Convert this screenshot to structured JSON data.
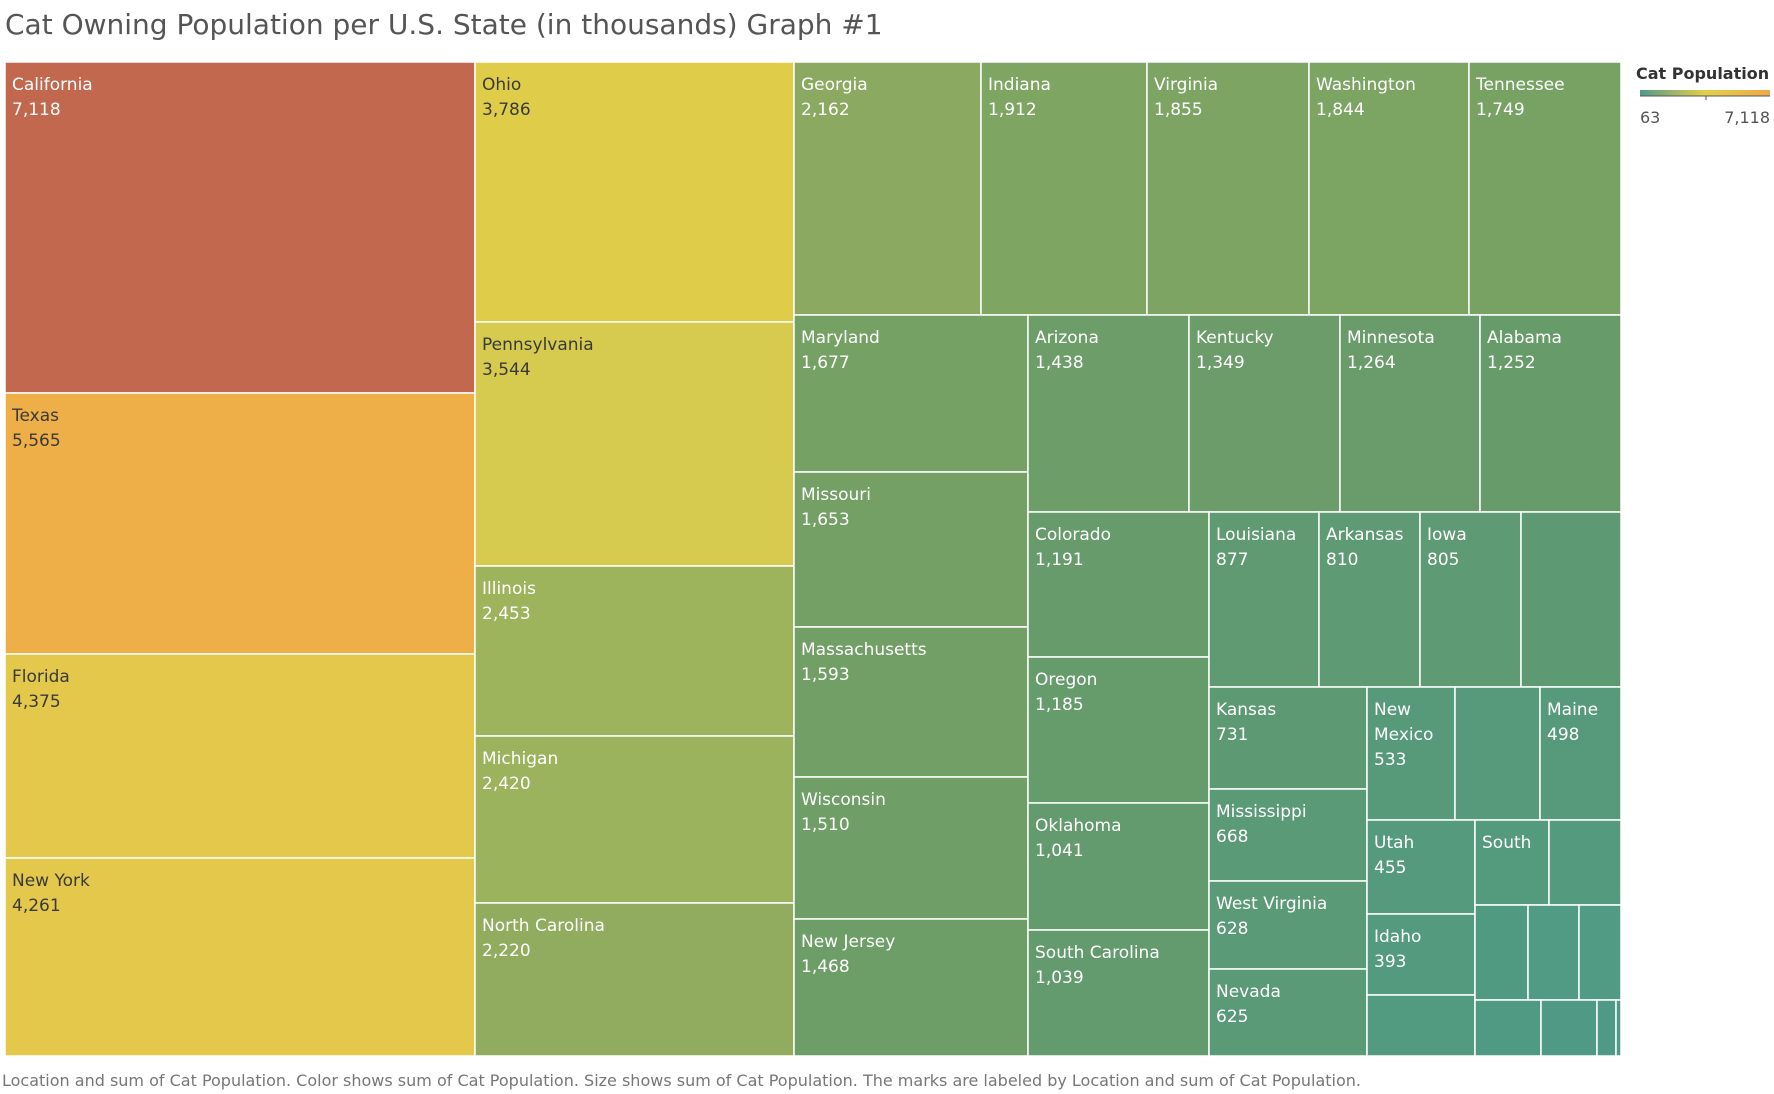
{
  "title": "Cat Owning Population per U.S. State (in thousands) Graph #1",
  "legend": {
    "title": "Cat Population",
    "min_label": "63",
    "max_label": "7,118"
  },
  "caption": "Location and sum of Cat Population.  Color shows sum of Cat Population.  Size shows sum of Cat Population.  The marks are labeled by Location and sum of Cat Population.",
  "chart_data": {
    "type": "treemap",
    "title": "Cat Owning Population per U.S. State (in thousands) Graph #1",
    "color_scale": {
      "min": 63,
      "max": 7118,
      "colors": [
        "#4f9a8a",
        "#e3cf4a",
        "#eeaa48"
      ]
    },
    "items": [
      {
        "label": "California",
        "value": 7118,
        "display": "7,118",
        "color": "#c1684f"
      },
      {
        "label": "Texas",
        "value": 5565,
        "display": "5,565",
        "color": "#eeaf48"
      },
      {
        "label": "Florida",
        "value": 4375,
        "display": "4,375",
        "color": "#e3c84c"
      },
      {
        "label": "New York",
        "value": 4261,
        "display": "4,261",
        "color": "#e3c84c"
      },
      {
        "label": "Ohio",
        "value": 3786,
        "display": "3,786",
        "color": "#dfcd49"
      },
      {
        "label": "Pennsylvania",
        "value": 3544,
        "display": "3,544",
        "color": "#d6cb4f"
      },
      {
        "label": "Illinois",
        "value": 2453,
        "display": "2,453",
        "color": "#9db45c"
      },
      {
        "label": "Michigan",
        "value": 2420,
        "display": "2,420",
        "color": "#9ab35c"
      },
      {
        "label": "North Carolina",
        "value": 2220,
        "display": "2,220",
        "color": "#91ac5e"
      },
      {
        "label": "Georgia",
        "value": 2162,
        "display": "2,162",
        "color": "#8ba960"
      },
      {
        "label": "Indiana",
        "value": 1912,
        "display": "1,912",
        "color": "#7fa563"
      },
      {
        "label": "Virginia",
        "value": 1855,
        "display": "1,855",
        "color": "#7da463"
      },
      {
        "label": "Washington",
        "value": 1844,
        "display": "1,844",
        "color": "#7ca463"
      },
      {
        "label": "Tennessee",
        "value": 1749,
        "display": "1,749",
        "color": "#78a264"
      },
      {
        "label": "Maryland",
        "value": 1677,
        "display": "1,677",
        "color": "#75a165"
      },
      {
        "label": "Missouri",
        "value": 1653,
        "display": "1,653",
        "color": "#74a065"
      },
      {
        "label": "Massachusetts",
        "value": 1593,
        "display": "1,593",
        "color": "#729f66"
      },
      {
        "label": "Wisconsin",
        "value": 1510,
        "display": "1,510",
        "color": "#6f9e67"
      },
      {
        "label": "New Jersey",
        "value": 1468,
        "display": "1,468",
        "color": "#6e9e67"
      },
      {
        "label": "Arizona",
        "value": 1438,
        "display": "1,438",
        "color": "#6d9d68"
      },
      {
        "label": "Kentucky",
        "value": 1349,
        "display": "1,349",
        "color": "#6b9c69"
      },
      {
        "label": "Minnesota",
        "value": 1264,
        "display": "1,264",
        "color": "#699c6a"
      },
      {
        "label": "Alabama",
        "value": 1252,
        "display": "1,252",
        "color": "#689b6a"
      },
      {
        "label": "Colorado",
        "value": 1191,
        "display": "1,191",
        "color": "#679b6b"
      },
      {
        "label": "Oregon",
        "value": 1185,
        "display": "1,185",
        "color": "#669b6c"
      },
      {
        "label": "Oklahoma",
        "value": 1041,
        "display": "1,041",
        "color": "#639a6e"
      },
      {
        "label": "South Carolina",
        "value": 1039,
        "display": "1,039",
        "color": "#639a6e"
      },
      {
        "label": "Louisiana",
        "value": 877,
        "display": "877",
        "color": "#5f9a72"
      },
      {
        "label": "Arkansas",
        "value": 810,
        "display": "810",
        "color": "#5e9a73"
      },
      {
        "label": "Iowa",
        "value": 805,
        "display": "805",
        "color": "#5e9a73"
      },
      {
        "label": "",
        "value": 700,
        "display": "",
        "color": "#5d9a74"
      },
      {
        "label": "Kansas",
        "value": 731,
        "display": "731",
        "color": "#5d9a74"
      },
      {
        "label": "Mississippi",
        "value": 668,
        "display": "668",
        "color": "#5b9a76"
      },
      {
        "label": "West Virginia",
        "value": 628,
        "display": "628",
        "color": "#5a9a77"
      },
      {
        "label": "Nevada",
        "value": 625,
        "display": "625",
        "color": "#5a9a77"
      },
      {
        "label": "New Mexico",
        "value": 533,
        "display": "533",
        "color": "#579a7a"
      },
      {
        "label": "",
        "value": 510,
        "display": "",
        "color": "#569a7b"
      },
      {
        "label": "Maine",
        "value": 498,
        "display": "498",
        "color": "#569a7b"
      },
      {
        "label": "Utah",
        "value": 455,
        "display": "455",
        "color": "#559a7c"
      },
      {
        "label": "South",
        "value": 430,
        "display": "",
        "color": "#549a7d"
      },
      {
        "label": "",
        "value": 400,
        "display": "",
        "color": "#549a7e"
      },
      {
        "label": "Idaho",
        "value": 393,
        "display": "393",
        "color": "#539a7e"
      },
      {
        "label": "",
        "value": 340,
        "display": "",
        "color": "#529a80"
      },
      {
        "label": "",
        "value": 250,
        "display": "",
        "color": "#519a82"
      },
      {
        "label": "",
        "value": 240,
        "display": "",
        "color": "#519a83"
      },
      {
        "label": "",
        "value": 240,
        "display": "",
        "color": "#519a83"
      },
      {
        "label": "",
        "value": 210,
        "display": "",
        "color": "#509a84"
      },
      {
        "label": "",
        "value": 170,
        "display": "",
        "color": "#509a85"
      },
      {
        "label": "",
        "value": 150,
        "display": "",
        "color": "#4f9a86"
      },
      {
        "label": "",
        "value": 63,
        "display": "",
        "color": "#4f9a8a"
      }
    ]
  }
}
